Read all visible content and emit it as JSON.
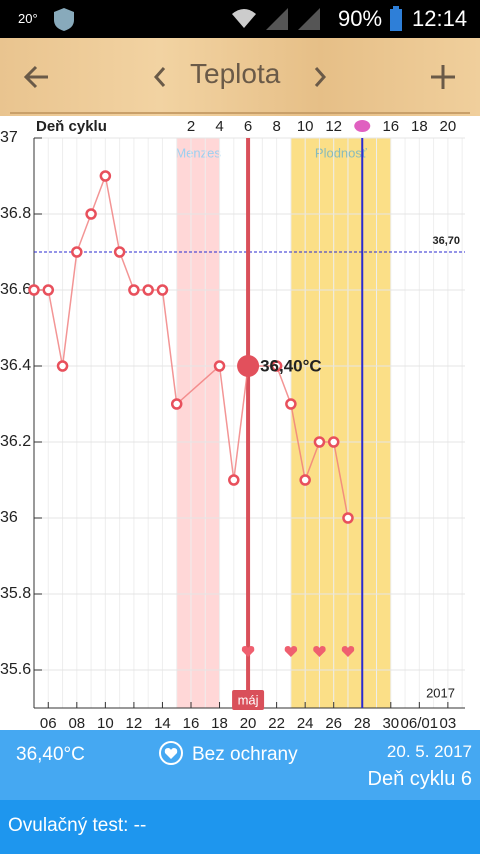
{
  "status_bar": {
    "temperature": "20°",
    "battery": "90%",
    "time": "12:14"
  },
  "toolbar": {
    "title": "Teplota"
  },
  "chart_data": {
    "type": "line",
    "title": "Deň cyklu",
    "series": [
      {
        "name": "Teplota",
        "color": "#f07a7a",
        "x": [
          5,
          6,
          7,
          8,
          9,
          10,
          11,
          12,
          13,
          14,
          15,
          18,
          19,
          20,
          22,
          23,
          24,
          25,
          26,
          27
        ],
        "values": [
          36.6,
          36.6,
          36.4,
          36.7,
          36.8,
          36.9,
          36.7,
          36.6,
          36.6,
          36.6,
          36.3,
          36.4,
          36.1,
          36.4,
          36.4,
          36.3,
          36.1,
          36.2,
          36.2,
          36.0
        ]
      }
    ],
    "xlim": [
      5,
      35.2
    ],
    "ylim": [
      35.5,
      37
    ],
    "yticks": [
      37,
      36.8,
      36.6,
      36.4,
      36.2,
      36,
      35.8,
      35.6
    ],
    "xticks": [
      {
        "value": 6,
        "label": "06"
      },
      {
        "value": 8,
        "label": "08"
      },
      10,
      12,
      14,
      16,
      18,
      20,
      22,
      24,
      26,
      28,
      30,
      {
        "value": 32,
        "label": "06/01"
      },
      {
        "value": 34,
        "label": "03"
      }
    ],
    "x2ticks": [
      {
        "value": 16,
        "label": "2"
      },
      {
        "value": 18,
        "label": "4"
      },
      {
        "value": 20,
        "label": "6"
      },
      {
        "value": 22,
        "label": "8"
      },
      {
        "value": 24,
        "label": "10"
      },
      {
        "value": 26,
        "label": "12"
      },
      {
        "value": 30,
        "label": "16"
      },
      {
        "value": 32,
        "label": "18"
      },
      {
        "value": 34,
        "label": "20"
      }
    ],
    "bands": [
      {
        "name": "Menzes",
        "from": 15,
        "to": 18,
        "color": "#ffd3d3"
      },
      {
        "name": "Plodnosť",
        "from": 23,
        "to": 30,
        "color": "#fbdc7a"
      }
    ],
    "reference_line": {
      "value": 36.7,
      "label": "36,70",
      "color": "#2a2ad0"
    },
    "today": {
      "value": 20,
      "label": "máj",
      "color": "#d9505a"
    },
    "ovulation": {
      "value": 28,
      "color": "#2a2ad0"
    },
    "hearts": [
      20,
      23,
      25,
      27
    ],
    "selected": {
      "x": 20,
      "value": 36.4,
      "label": "36,40°C"
    },
    "year": "2017",
    "grid": true
  },
  "footer": {
    "temperature": "36,40°C",
    "protection": "Bez ochrany",
    "date": "20. 5. 2017",
    "cycle_day": "Deň cyklu 6",
    "ovulation_test": "Ovulačný test: --"
  }
}
